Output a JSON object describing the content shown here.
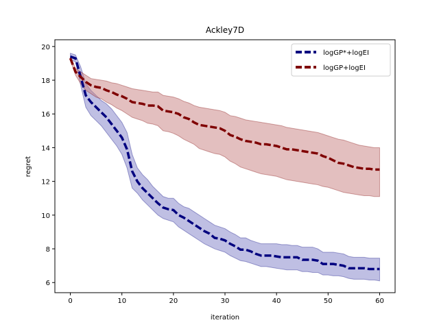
{
  "chart_data": {
    "type": "line",
    "title": "Ackley7D",
    "xlabel": "iteration",
    "ylabel": "regret",
    "xlim": [
      -3,
      63
    ],
    "ylim": [
      5.4,
      20.4
    ],
    "xticks": [
      0,
      10,
      20,
      30,
      40,
      50,
      60
    ],
    "yticks": [
      6,
      8,
      10,
      12,
      14,
      16,
      18,
      20
    ],
    "grid": false,
    "legend_position": "top-right",
    "x": [
      0,
      1,
      2,
      3,
      4,
      5,
      6,
      7,
      8,
      9,
      10,
      11,
      12,
      13,
      14,
      15,
      16,
      17,
      18,
      19,
      20,
      21,
      22,
      23,
      24,
      25,
      26,
      27,
      28,
      29,
      30,
      31,
      32,
      33,
      34,
      35,
      36,
      37,
      38,
      39,
      40,
      41,
      42,
      43,
      44,
      45,
      46,
      47,
      48,
      49,
      50,
      51,
      52,
      53,
      54,
      55,
      56,
      57,
      58,
      59,
      60
    ],
    "series": [
      {
        "name": "logGP*+logEI",
        "color": "#00007f",
        "fill_color": "#7f7fc8",
        "values": [
          19.4,
          19.3,
          18.2,
          17.1,
          16.7,
          16.4,
          16.1,
          15.8,
          15.4,
          15.0,
          14.6,
          13.9,
          12.6,
          12.0,
          11.6,
          11.3,
          11.0,
          10.7,
          10.45,
          10.35,
          10.3,
          10.0,
          9.85,
          9.65,
          9.45,
          9.25,
          9.05,
          8.9,
          8.65,
          8.6,
          8.5,
          8.3,
          8.15,
          7.95,
          7.95,
          7.85,
          7.7,
          7.6,
          7.6,
          7.6,
          7.55,
          7.5,
          7.5,
          7.5,
          7.5,
          7.35,
          7.35,
          7.35,
          7.3,
          7.1,
          7.1,
          7.1,
          7.05,
          7.0,
          6.85,
          6.85,
          6.85,
          6.85,
          6.8,
          6.8,
          6.8
        ],
        "lower": [
          19.2,
          19.1,
          17.7,
          16.4,
          15.9,
          15.6,
          15.3,
          14.9,
          14.5,
          14.1,
          13.6,
          12.8,
          11.6,
          11.3,
          10.9,
          10.6,
          10.3,
          10.0,
          9.8,
          9.7,
          9.6,
          9.3,
          9.1,
          8.9,
          8.7,
          8.5,
          8.3,
          8.15,
          8.0,
          7.9,
          7.8,
          7.6,
          7.45,
          7.3,
          7.25,
          7.15,
          7.05,
          6.95,
          6.95,
          6.9,
          6.85,
          6.8,
          6.75,
          6.75,
          6.75,
          6.65,
          6.65,
          6.6,
          6.6,
          6.45,
          6.45,
          6.4,
          6.4,
          6.35,
          6.25,
          6.2,
          6.2,
          6.2,
          6.15,
          6.15,
          6.1
        ],
        "upper": [
          19.6,
          19.5,
          18.8,
          17.8,
          17.4,
          17.1,
          16.8,
          16.6,
          16.3,
          15.9,
          15.5,
          14.9,
          13.6,
          12.8,
          12.4,
          12.1,
          11.7,
          11.4,
          11.1,
          11.0,
          11.0,
          10.7,
          10.5,
          10.4,
          10.2,
          10.0,
          9.8,
          9.6,
          9.4,
          9.3,
          9.2,
          9.0,
          8.85,
          8.65,
          8.65,
          8.5,
          8.4,
          8.3,
          8.3,
          8.3,
          8.3,
          8.25,
          8.25,
          8.2,
          8.2,
          8.1,
          8.1,
          8.1,
          8.0,
          7.8,
          7.8,
          7.8,
          7.75,
          7.7,
          7.55,
          7.5,
          7.5,
          7.5,
          7.45,
          7.45,
          7.45
        ]
      },
      {
        "name": "logGP+logEI",
        "color": "#7f0000",
        "fill_color": "#c87f7f",
        "values": [
          19.3,
          18.5,
          18.2,
          17.9,
          17.7,
          17.6,
          17.55,
          17.4,
          17.3,
          17.15,
          17.05,
          16.9,
          16.7,
          16.65,
          16.6,
          16.5,
          16.5,
          16.45,
          16.2,
          16.15,
          16.1,
          16.0,
          15.8,
          15.7,
          15.5,
          15.35,
          15.3,
          15.25,
          15.2,
          15.15,
          15.0,
          14.75,
          14.65,
          14.5,
          14.4,
          14.35,
          14.3,
          14.2,
          14.2,
          14.15,
          14.1,
          14.0,
          13.9,
          13.9,
          13.85,
          13.8,
          13.75,
          13.7,
          13.65,
          13.5,
          13.4,
          13.25,
          13.1,
          13.05,
          12.95,
          12.85,
          12.8,
          12.75,
          12.75,
          12.7,
          12.7
        ],
        "lower": [
          19.2,
          18.3,
          17.8,
          17.4,
          17.2,
          17.0,
          16.9,
          16.7,
          16.55,
          16.35,
          16.2,
          16.0,
          15.8,
          15.7,
          15.6,
          15.45,
          15.4,
          15.3,
          15.0,
          14.95,
          14.85,
          14.7,
          14.5,
          14.35,
          14.2,
          13.95,
          13.85,
          13.75,
          13.65,
          13.6,
          13.45,
          13.2,
          13.05,
          12.85,
          12.75,
          12.65,
          12.55,
          12.45,
          12.4,
          12.35,
          12.3,
          12.2,
          12.1,
          12.05,
          12.0,
          11.95,
          11.9,
          11.85,
          11.8,
          11.7,
          11.65,
          11.55,
          11.45,
          11.35,
          11.3,
          11.25,
          11.2,
          11.15,
          11.15,
          11.1,
          11.1
        ],
        "upper": [
          19.4,
          18.7,
          18.5,
          18.3,
          18.1,
          18.05,
          18.0,
          17.95,
          17.85,
          17.8,
          17.7,
          17.6,
          17.5,
          17.45,
          17.4,
          17.35,
          17.3,
          17.3,
          17.1,
          17.05,
          17.0,
          16.9,
          16.75,
          16.65,
          16.5,
          16.4,
          16.35,
          16.3,
          16.25,
          16.2,
          16.1,
          15.9,
          15.85,
          15.75,
          15.65,
          15.6,
          15.55,
          15.5,
          15.45,
          15.4,
          15.35,
          15.3,
          15.2,
          15.15,
          15.1,
          15.05,
          15.0,
          14.95,
          14.9,
          14.8,
          14.7,
          14.6,
          14.5,
          14.45,
          14.35,
          14.25,
          14.15,
          14.1,
          14.05,
          14.0,
          14.0
        ]
      }
    ]
  }
}
